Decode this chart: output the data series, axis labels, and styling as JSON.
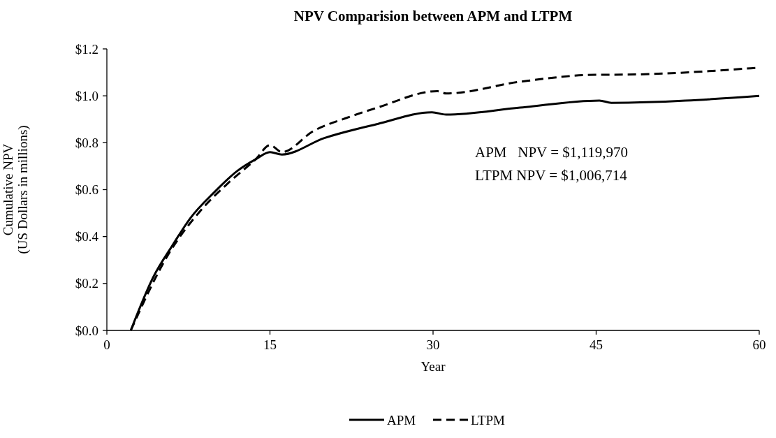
{
  "chart_data": {
    "type": "line",
    "title": "NPV Comparision between APM and LTPM",
    "xlabel": "Year",
    "ylabel": "Cumulative NPV\n(US Dollars in millions)",
    "xlim": [
      0,
      60
    ],
    "xticks": [
      0,
      15,
      30,
      45,
      60
    ],
    "ylim": [
      0,
      1.2
    ],
    "yticks": [
      {
        "value": 0,
        "label": "$0.0"
      },
      {
        "value": 0.2,
        "label": "$0.2"
      },
      {
        "value": 0.4,
        "label": "$0.4"
      },
      {
        "value": 0.6,
        "label": "$0.6"
      },
      {
        "value": 0.8,
        "label": "$0.8"
      },
      {
        "value": 1.0,
        "label": "$1.0"
      },
      {
        "value": 1.2,
        "label": "$1.2"
      }
    ],
    "grid": false,
    "legend": "bottom",
    "marker": "none",
    "annotations": [
      "APM   NPV = $1,119,970",
      "LTPM NPV = $1,006,714"
    ],
    "series": [
      {
        "name": "APM",
        "color": "#000000",
        "line_style": "solid",
        "x": [
          2.2,
          4.3,
          6,
          7.7,
          9.9,
          12,
          13.7,
          15,
          16.1,
          20,
          24.9,
          29.9,
          31.2,
          38,
          45.3,
          46.4,
          60
        ],
        "values": [
          0,
          0.23,
          0.36,
          0.48,
          0.59,
          0.68,
          0.73,
          0.76,
          0.75,
          0.82,
          0.88,
          0.93,
          0.92,
          0.95,
          0.98,
          0.97,
          1.0
        ]
      },
      {
        "name": "LTPM",
        "color": "#000000",
        "line_style": "dashed",
        "x": [
          2.2,
          5.6,
          8.8,
          11.2,
          13.7,
          15,
          16.1,
          19,
          22.3,
          24.9,
          30.4,
          31.2,
          38,
          45.3,
          46.4,
          60
        ],
        "values": [
          0,
          0.32,
          0.52,
          0.63,
          0.73,
          0.79,
          0.76,
          0.85,
          0.91,
          0.95,
          1.02,
          1.01,
          1.06,
          1.09,
          1.09,
          1.12
        ]
      }
    ]
  }
}
